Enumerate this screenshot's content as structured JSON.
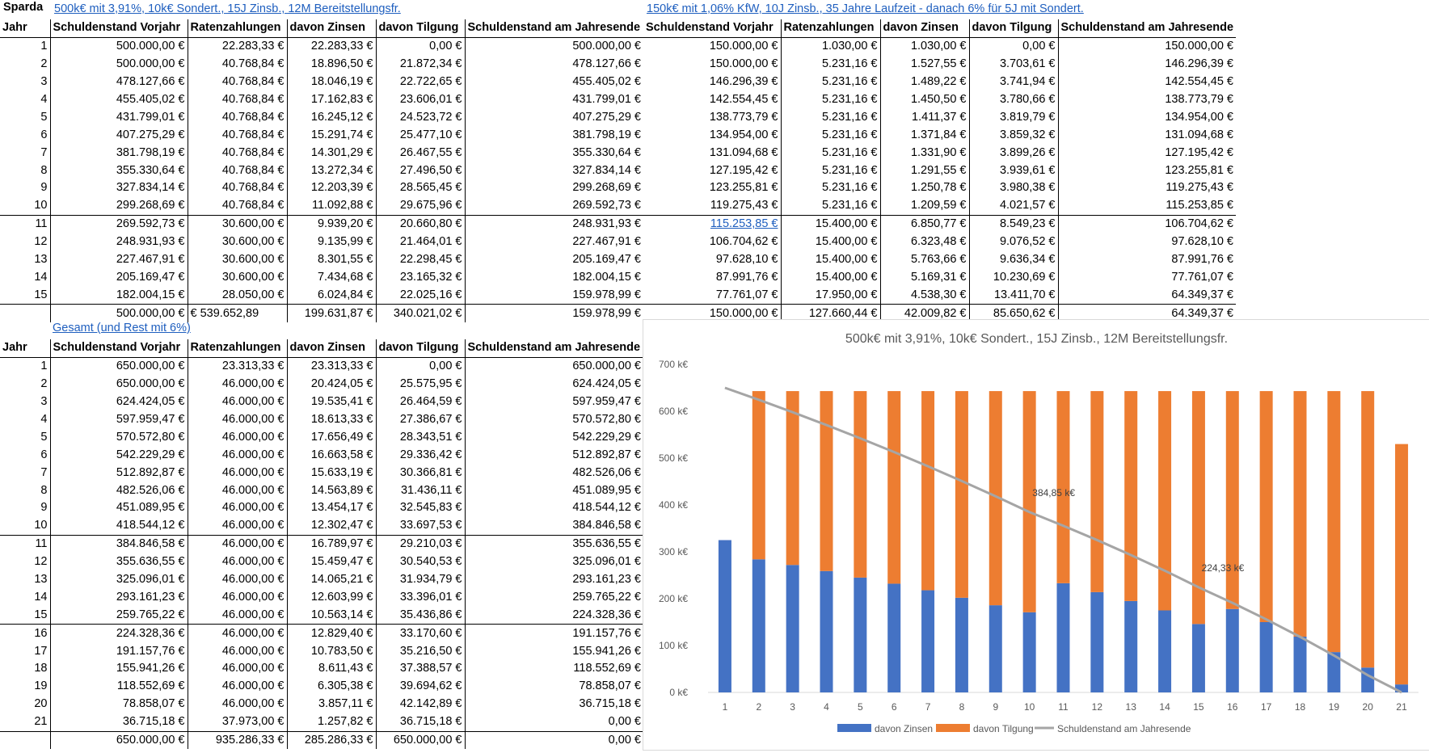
{
  "sheet": {
    "label_sparda": "Sparda",
    "loan1_title": "500k€ mit 3,91%, 10k€ Sondert., 15J Zinsb., 12M Bereitstellungsfr.",
    "loan2_title": "150k€ mit 1,06% KfW, 10J Zinsb., 35 Jahre Laufzeit - danach 6% für 5J mit Sondert.",
    "total_title": "Gesamt (und Rest mit 6%)"
  },
  "table1": {
    "headers": [
      "Jahr",
      "Schuldenstand Vorjahr",
      "Ratenzahlungen",
      "davon Zinsen",
      "davon Tilgung",
      "Schuldenstand am Jahresende"
    ],
    "rows": [
      [
        "1",
        "500.000,00 €",
        "22.283,33 €",
        "22.283,33 €",
        "0,00 €",
        "500.000,00 €"
      ],
      [
        "2",
        "500.000,00 €",
        "40.768,84 €",
        "18.896,50 €",
        "21.872,34 €",
        "478.127,66 €"
      ],
      [
        "3",
        "478.127,66 €",
        "40.768,84 €",
        "18.046,19 €",
        "22.722,65 €",
        "455.405,02 €"
      ],
      [
        "4",
        "455.405,02 €",
        "40.768,84 €",
        "17.162,83 €",
        "23.606,01 €",
        "431.799,01 €"
      ],
      [
        "5",
        "431.799,01 €",
        "40.768,84 €",
        "16.245,12 €",
        "24.523,72 €",
        "407.275,29 €"
      ],
      [
        "6",
        "407.275,29 €",
        "40.768,84 €",
        "15.291,74 €",
        "25.477,10 €",
        "381.798,19 €"
      ],
      [
        "7",
        "381.798,19 €",
        "40.768,84 €",
        "14.301,29 €",
        "26.467,55 €",
        "355.330,64 €"
      ],
      [
        "8",
        "355.330,64 €",
        "40.768,84 €",
        "13.272,34 €",
        "27.496,50 €",
        "327.834,14 €"
      ],
      [
        "9",
        "327.834,14 €",
        "40.768,84 €",
        "12.203,39 €",
        "28.565,45 €",
        "299.268,69 €"
      ],
      [
        "10",
        "299.268,69 €",
        "40.768,84 €",
        "11.092,88 €",
        "29.675,96 €",
        "269.592,73 €"
      ],
      [
        "11",
        "269.592,73 €",
        "30.600,00 €",
        "9.939,20 €",
        "20.660,80 €",
        "248.931,93 €"
      ],
      [
        "12",
        "248.931,93 €",
        "30.600,00 €",
        "9.135,99 €",
        "21.464,01 €",
        "227.467,91 €"
      ],
      [
        "13",
        "227.467,91 €",
        "30.600,00 €",
        "8.301,55 €",
        "22.298,45 €",
        "205.169,47 €"
      ],
      [
        "14",
        "205.169,47 €",
        "30.600,00 €",
        "7.434,68 €",
        "23.165,32 €",
        "182.004,15 €"
      ],
      [
        "15",
        "182.004,15 €",
        "28.050,00 €",
        "6.024,84 €",
        "22.025,16 €",
        "159.978,99 €"
      ]
    ],
    "total": [
      "",
      "500.000,00 €",
      "€   539.652,89",
      "199.631,87 €",
      "340.021,02 €",
      "159.978,99 €"
    ]
  },
  "table2": {
    "headers": [
      "Schuldenstand Vorjahr",
      "Ratenzahlungen",
      "davon Zinsen",
      "davon Tilgung",
      "Schuldenstand am Jahresende"
    ],
    "rows": [
      [
        "150.000,00 €",
        "1.030,00 €",
        "1.030,00 €",
        "0,00 €",
        "150.000,00 €"
      ],
      [
        "150.000,00 €",
        "5.231,16 €",
        "1.527,55 €",
        "3.703,61 €",
        "146.296,39 €"
      ],
      [
        "146.296,39 €",
        "5.231,16 €",
        "1.489,22 €",
        "3.741,94 €",
        "142.554,45 €"
      ],
      [
        "142.554,45 €",
        "5.231,16 €",
        "1.450,50 €",
        "3.780,66 €",
        "138.773,79 €"
      ],
      [
        "138.773,79 €",
        "5.231,16 €",
        "1.411,37 €",
        "3.819,79 €",
        "134.954,00 €"
      ],
      [
        "134.954,00 €",
        "5.231,16 €",
        "1.371,84 €",
        "3.859,32 €",
        "131.094,68 €"
      ],
      [
        "131.094,68 €",
        "5.231,16 €",
        "1.331,90 €",
        "3.899,26 €",
        "127.195,42 €"
      ],
      [
        "127.195,42 €",
        "5.231,16 €",
        "1.291,55 €",
        "3.939,61 €",
        "123.255,81 €"
      ],
      [
        "123.255,81 €",
        "5.231,16 €",
        "1.250,78 €",
        "3.980,38 €",
        "119.275,43 €"
      ],
      [
        "119.275,43 €",
        "5.231,16 €",
        "1.209,59 €",
        "4.021,57 €",
        "115.253,85 €"
      ],
      [
        "115.253,85 €",
        "15.400,00 €",
        "6.850,77 €",
        "8.549,23 €",
        "106.704,62 €"
      ],
      [
        "106.704,62 €",
        "15.400,00 €",
        "6.323,48 €",
        "9.076,52 €",
        "97.628,10 €"
      ],
      [
        "97.628,10 €",
        "15.400,00 €",
        "5.763,66 €",
        "9.636,34 €",
        "87.991,76 €"
      ],
      [
        "87.991,76 €",
        "15.400,00 €",
        "5.169,31 €",
        "10.230,69 €",
        "77.761,07 €"
      ],
      [
        "77.761,07 €",
        "17.950,00 €",
        "4.538,30 €",
        "13.411,70 €",
        "64.349,37 €"
      ]
    ],
    "total": [
      "150.000,00 €",
      "127.660,44 €",
      "42.009,82 €",
      "85.650,62 €",
      "64.349,37 €"
    ]
  },
  "table3": {
    "headers": [
      "Jahr",
      "Schuldenstand Vorjahr",
      "Ratenzahlungen",
      "davon Zinsen",
      "davon Tilgung",
      "Schuldenstand am Jahresende"
    ],
    "rows": [
      [
        "1",
        "650.000,00 €",
        "23.313,33 €",
        "23.313,33 €",
        "0,00 €",
        "650.000,00 €"
      ],
      [
        "2",
        "650.000,00 €",
        "46.000,00 €",
        "20.424,05 €",
        "25.575,95 €",
        "624.424,05 €"
      ],
      [
        "3",
        "624.424,05 €",
        "46.000,00 €",
        "19.535,41 €",
        "26.464,59 €",
        "597.959,47 €"
      ],
      [
        "4",
        "597.959,47 €",
        "46.000,00 €",
        "18.613,33 €",
        "27.386,67 €",
        "570.572,80 €"
      ],
      [
        "5",
        "570.572,80 €",
        "46.000,00 €",
        "17.656,49 €",
        "28.343,51 €",
        "542.229,29 €"
      ],
      [
        "6",
        "542.229,29 €",
        "46.000,00 €",
        "16.663,58 €",
        "29.336,42 €",
        "512.892,87 €"
      ],
      [
        "7",
        "512.892,87 €",
        "46.000,00 €",
        "15.633,19 €",
        "30.366,81 €",
        "482.526,06 €"
      ],
      [
        "8",
        "482.526,06 €",
        "46.000,00 €",
        "14.563,89 €",
        "31.436,11 €",
        "451.089,95 €"
      ],
      [
        "9",
        "451.089,95 €",
        "46.000,00 €",
        "13.454,17 €",
        "32.545,83 €",
        "418.544,12 €"
      ],
      [
        "10",
        "418.544,12 €",
        "46.000,00 €",
        "12.302,47 €",
        "33.697,53 €",
        "384.846,58 €"
      ],
      [
        "11",
        "384.846,58 €",
        "46.000,00 €",
        "16.789,97 €",
        "29.210,03 €",
        "355.636,55 €"
      ],
      [
        "12",
        "355.636,55 €",
        "46.000,00 €",
        "15.459,47 €",
        "30.540,53 €",
        "325.096,01 €"
      ],
      [
        "13",
        "325.096,01 €",
        "46.000,00 €",
        "14.065,21 €",
        "31.934,79 €",
        "293.161,23 €"
      ],
      [
        "14",
        "293.161,23 €",
        "46.000,00 €",
        "12.603,99 €",
        "33.396,01 €",
        "259.765,22 €"
      ],
      [
        "15",
        "259.765,22 €",
        "46.000,00 €",
        "10.563,14 €",
        "35.436,86 €",
        "224.328,36 €"
      ],
      [
        "16",
        "224.328,36 €",
        "46.000,00 €",
        "12.829,40 €",
        "33.170,60 €",
        "191.157,76 €"
      ],
      [
        "17",
        "191.157,76 €",
        "46.000,00 €",
        "10.783,50 €",
        "35.216,50 €",
        "155.941,26 €"
      ],
      [
        "18",
        "155.941,26 €",
        "46.000,00 €",
        "8.611,43 €",
        "37.388,57 €",
        "118.552,69 €"
      ],
      [
        "19",
        "118.552,69 €",
        "46.000,00 €",
        "6.305,38 €",
        "39.694,62 €",
        "78.858,07 €"
      ],
      [
        "20",
        "78.858,07 €",
        "46.000,00 €",
        "3.857,11 €",
        "42.142,89 €",
        "36.715,18 €"
      ],
      [
        "21",
        "36.715,18 €",
        "37.973,00 €",
        "1.257,82 €",
        "36.715,18 €",
        "0,00 €"
      ]
    ],
    "total": [
      "",
      "650.000,00 €",
      "935.286,33 €",
      "285.286,33 €",
      "650.000,00 €",
      "0,00 €"
    ]
  },
  "chart_data": {
    "type": "bar",
    "title": "500k€ mit 3,91%, 10k€ Sondert., 15J Zinsb., 12M Bereitstellungsfr.",
    "categories": [
      "1",
      "2",
      "3",
      "4",
      "5",
      "6",
      "7",
      "8",
      "9",
      "10",
      "11",
      "12",
      "13",
      "14",
      "15",
      "16",
      "17",
      "18",
      "19",
      "20",
      "21"
    ],
    "series": [
      {
        "name": "davon Zinsen",
        "kind": "stacked-bar",
        "color": "#4472c4",
        "values": [
          325,
          284,
          272,
          259,
          245,
          232,
          218,
          202,
          186,
          171,
          233,
          214,
          195,
          175,
          146,
          178,
          150,
          119,
          86,
          53,
          17
        ]
      },
      {
        "name": "davon Tilgung",
        "kind": "stacked-bar",
        "color": "#ed7d31",
        "values": [
          0,
          359,
          371,
          384,
          398,
          411,
          425,
          441,
          457,
          472,
          410,
          429,
          448,
          468,
          497,
          465,
          493,
          524,
          557,
          590,
          513
        ]
      },
      {
        "name": "Schuldenstand am Jahresende",
        "kind": "line",
        "color": "#a5a5a5",
        "values": [
          650,
          624.42,
          597.96,
          570.57,
          542.23,
          512.89,
          482.53,
          451.09,
          418.54,
          384.85,
          355.64,
          325.1,
          293.16,
          259.77,
          224.33,
          191.16,
          155.94,
          118.55,
          78.86,
          36.72,
          0
        ]
      }
    ],
    "data_labels": [
      {
        "category": "10",
        "text": "384,85 k€"
      },
      {
        "category": "15",
        "text": "224,33 k€"
      }
    ],
    "y_ticks": [
      "0 k€",
      "100 k€",
      "200 k€",
      "300 k€",
      "400 k€",
      "500 k€",
      "600 k€",
      "700 k€"
    ],
    "ylim": [
      0,
      700
    ],
    "grid": false,
    "legend": "bottom"
  }
}
